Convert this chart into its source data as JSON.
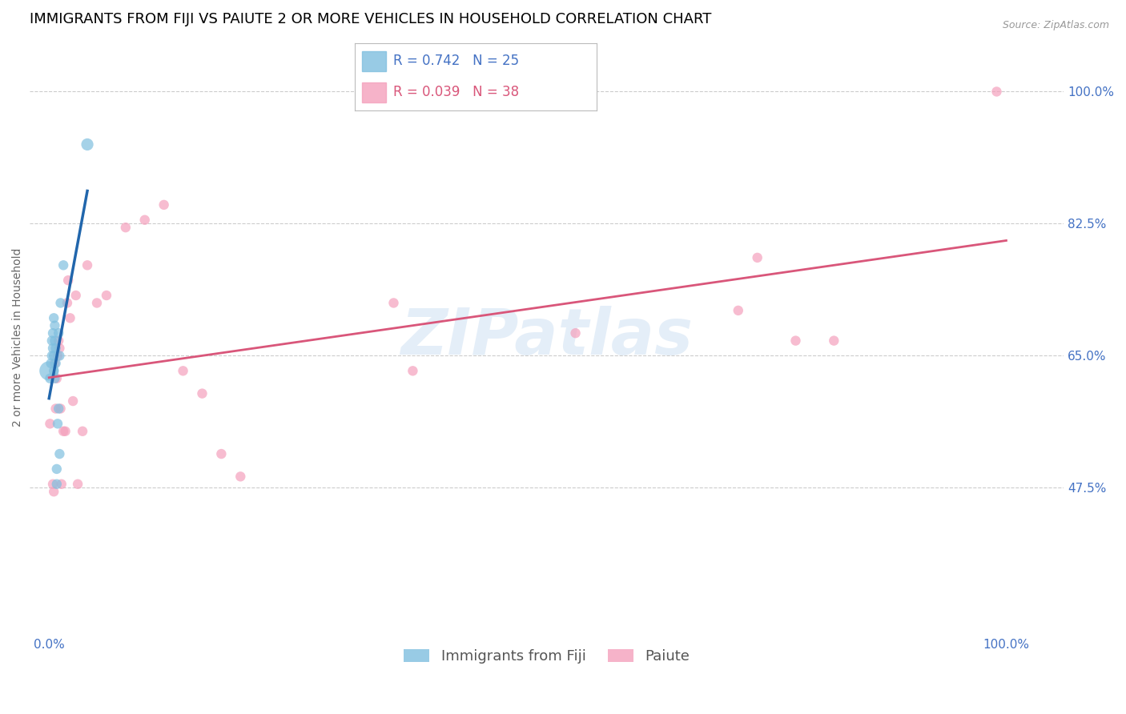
{
  "title": "IMMIGRANTS FROM FIJI VS PAIUTE 2 OR MORE VEHICLES IN HOUSEHOLD CORRELATION CHART",
  "source": "Source: ZipAtlas.com",
  "ylabel": "2 or more Vehicles in Household",
  "ytick_labels": [
    "100.0%",
    "82.5%",
    "65.0%",
    "47.5%"
  ],
  "ytick_values": [
    1.0,
    0.825,
    0.65,
    0.475
  ],
  "xtick_labels": [
    "0.0%",
    "100.0%"
  ],
  "xtick_positions": [
    0.0,
    1.0
  ],
  "xlim": [
    -0.02,
    1.06
  ],
  "ylim": [
    0.28,
    1.07
  ],
  "fiji_R": 0.742,
  "fiji_N": 25,
  "paiute_R": 0.039,
  "paiute_N": 38,
  "fiji_color": "#7fbfdf",
  "paiute_color": "#f4a0bc",
  "regression_fiji_color": "#2166ac",
  "regression_paiute_color": "#d9567a",
  "legend_fiji_label": "Immigrants from Fiji",
  "legend_paiute_label": "Paiute",
  "watermark": "ZIPatlas",
  "fiji_points_x": [
    0.0,
    0.001,
    0.002,
    0.003,
    0.003,
    0.004,
    0.004,
    0.005,
    0.005,
    0.005,
    0.006,
    0.006,
    0.006,
    0.007,
    0.007,
    0.008,
    0.008,
    0.009,
    0.01,
    0.01,
    0.011,
    0.011,
    0.012,
    0.015,
    0.04
  ],
  "fiji_points_y": [
    0.63,
    0.62,
    0.64,
    0.65,
    0.67,
    0.66,
    0.68,
    0.63,
    0.65,
    0.7,
    0.62,
    0.67,
    0.69,
    0.64,
    0.66,
    0.48,
    0.5,
    0.56,
    0.58,
    0.68,
    0.52,
    0.65,
    0.72,
    0.77,
    0.93
  ],
  "fiji_sizes": [
    300,
    80,
    80,
    80,
    80,
    80,
    80,
    80,
    80,
    80,
    80,
    80,
    80,
    80,
    80,
    80,
    80,
    80,
    80,
    80,
    80,
    80,
    80,
    80,
    120
  ],
  "paiute_points_x": [
    0.001,
    0.004,
    0.005,
    0.006,
    0.007,
    0.008,
    0.009,
    0.01,
    0.011,
    0.012,
    0.013,
    0.015,
    0.017,
    0.019,
    0.02,
    0.022,
    0.025,
    0.028,
    0.03,
    0.035,
    0.04,
    0.05,
    0.06,
    0.08,
    0.1,
    0.12,
    0.14,
    0.16,
    0.18,
    0.2,
    0.36,
    0.38,
    0.55,
    0.72,
    0.74,
    0.78,
    0.82,
    0.99
  ],
  "paiute_points_y": [
    0.56,
    0.48,
    0.47,
    0.64,
    0.58,
    0.62,
    0.65,
    0.67,
    0.66,
    0.58,
    0.48,
    0.55,
    0.55,
    0.72,
    0.75,
    0.7,
    0.59,
    0.73,
    0.48,
    0.55,
    0.77,
    0.72,
    0.73,
    0.82,
    0.83,
    0.85,
    0.63,
    0.6,
    0.52,
    0.49,
    0.72,
    0.63,
    0.68,
    0.71,
    0.78,
    0.67,
    0.67,
    1.0
  ],
  "paiute_sizes": [
    80,
    80,
    80,
    80,
    80,
    80,
    80,
    80,
    80,
    80,
    80,
    80,
    80,
    80,
    80,
    80,
    80,
    80,
    80,
    80,
    80,
    80,
    80,
    80,
    80,
    80,
    80,
    80,
    80,
    80,
    80,
    80,
    80,
    80,
    80,
    80,
    80,
    80
  ],
  "background_color": "#ffffff",
  "grid_color": "#cccccc",
  "axis_label_color": "#4472c4",
  "title_color": "#000000",
  "title_fontsize": 13,
  "label_fontsize": 10,
  "tick_fontsize": 11,
  "legend_fontsize": 13
}
